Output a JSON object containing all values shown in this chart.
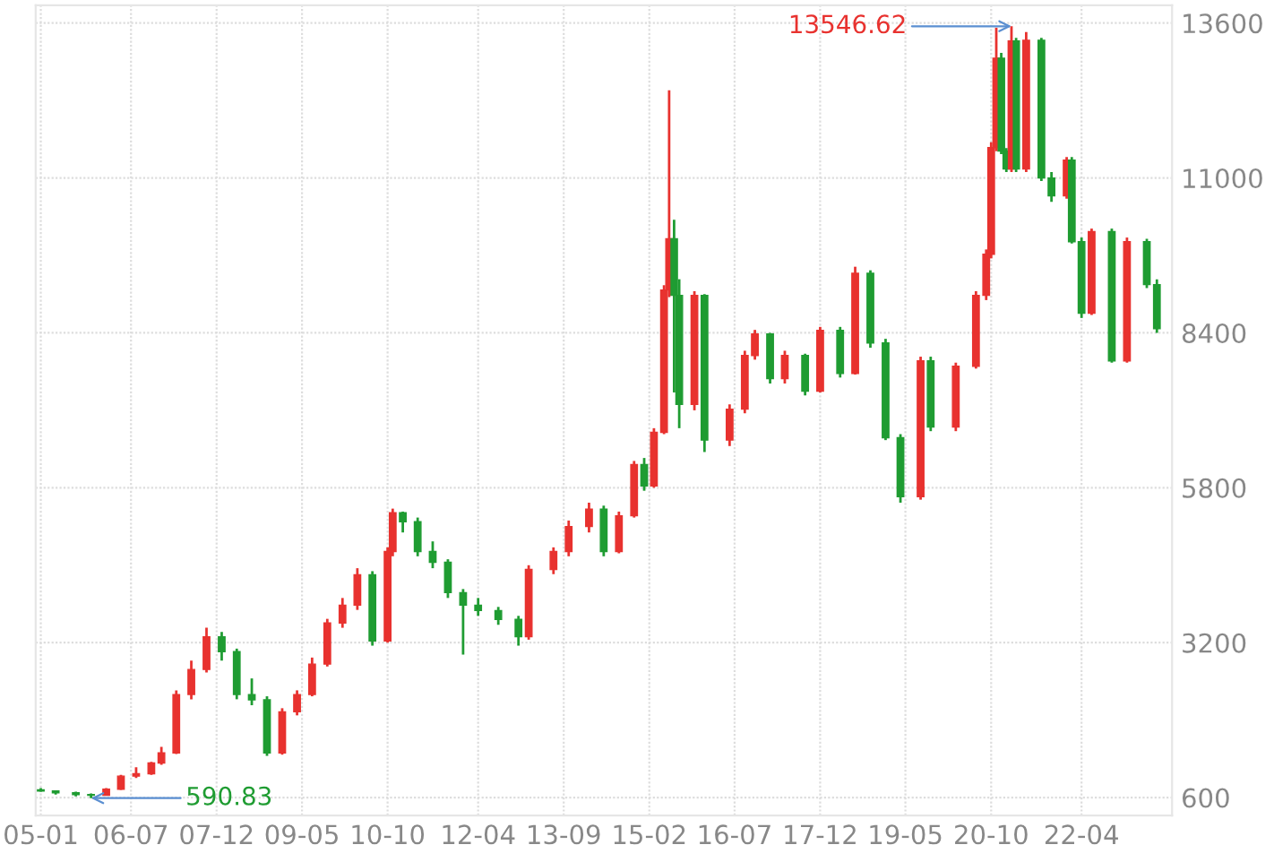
{
  "chart_data": {
    "type": "candlestick",
    "x": [
      "2005-01",
      "2005-04",
      "2005-08",
      "2005-11",
      "2006-02",
      "2006-05",
      "2006-08",
      "2006-11",
      "2007-01",
      "2007-04",
      "2007-07",
      "2007-10",
      "2008-01",
      "2008-04",
      "2008-07",
      "2008-10",
      "2009-01",
      "2009-04",
      "2009-07",
      "2009-10",
      "2010-01",
      "2010-04",
      "2010-07",
      "2010-10",
      "2010-11",
      "2011-01",
      "2011-04",
      "2011-07",
      "2011-10",
      "2012-01",
      "2012-04",
      "2012-08",
      "2012-12",
      "2013-02",
      "2013-07",
      "2013-10",
      "2014-02",
      "2014-05",
      "2014-08",
      "2014-11",
      "2015-01",
      "2015-03",
      "2015-05",
      "2015-06",
      "2015-07",
      "2015-08",
      "2015-11",
      "2016-01",
      "2016-06",
      "2016-09",
      "2016-11",
      "2017-02",
      "2017-05",
      "2017-09",
      "2017-12",
      "2018-04",
      "2018-07",
      "2018-10",
      "2019-01",
      "2019-04",
      "2019-08",
      "2019-10",
      "2020-03",
      "2020-07",
      "2020-09",
      "2020-10",
      "2020-11",
      "2020-12",
      "2021-01",
      "2021-02",
      "2021-03",
      "2021-05",
      "2021-08",
      "2021-10",
      "2022-01",
      "2022-02",
      "2022-04",
      "2022-06",
      "2022-10",
      "2023-01",
      "2023-05",
      "2023-07"
    ],
    "ohlc": [
      [
        730,
        760,
        700,
        710
      ],
      [
        710,
        720,
        650,
        680
      ],
      [
        680,
        700,
        620,
        650
      ],
      [
        650,
        670,
        590.83,
        640
      ],
      [
        640,
        760,
        630,
        740
      ],
      [
        740,
        980,
        730,
        960
      ],
      [
        960,
        1110,
        930,
        1000
      ],
      [
        1000,
        1200,
        980,
        1180
      ],
      [
        1180,
        1450,
        1150,
        1350
      ],
      [
        1350,
        2400,
        1330,
        2330
      ],
      [
        2330,
        2900,
        2250,
        2750
      ],
      [
        2750,
        3450,
        2700,
        3300
      ],
      [
        3300,
        3380,
        2900,
        3050
      ],
      [
        3050,
        3100,
        2250,
        2330
      ],
      [
        2330,
        2600,
        2150,
        2240
      ],
      [
        2240,
        2300,
        1300,
        1350
      ],
      [
        1350,
        2100,
        1320,
        2040
      ],
      [
        2040,
        2400,
        1980,
        2330
      ],
      [
        2330,
        2950,
        2300,
        2840
      ],
      [
        2840,
        3600,
        2800,
        3530
      ],
      [
        3530,
        3950,
        3450,
        3830
      ],
      [
        3830,
        4450,
        3750,
        4340
      ],
      [
        4340,
        4400,
        3150,
        3230
      ],
      [
        3230,
        4800,
        3200,
        4730
      ],
      [
        4730,
        5450,
        4650,
        5380
      ],
      [
        5380,
        5400,
        5050,
        5230
      ],
      [
        5230,
        5300,
        4650,
        4730
      ],
      [
        4730,
        4900,
        4450,
        4550
      ],
      [
        4550,
        4600,
        3950,
        4040
      ],
      [
        4040,
        4100,
        3000,
        3830
      ],
      [
        3830,
        3950,
        3650,
        3740
      ],
      [
        3740,
        3800,
        3500,
        3590
      ],
      [
        3590,
        3650,
        3150,
        3300
      ],
      [
        3300,
        4500,
        3250,
        4430
      ],
      [
        4430,
        4800,
        4350,
        4730
      ],
      [
        4730,
        5250,
        4650,
        5150
      ],
      [
        5150,
        5550,
        5050,
        5440
      ],
      [
        5440,
        5500,
        4650,
        4730
      ],
      [
        4730,
        5400,
        4700,
        5330
      ],
      [
        5330,
        6250,
        5300,
        6190
      ],
      [
        6190,
        6300,
        5750,
        5830
      ],
      [
        5830,
        6800,
        5800,
        6730
      ],
      [
        6730,
        9200,
        6700,
        9120
      ],
      [
        9120,
        12470,
        9000,
        9980
      ],
      [
        9980,
        10300,
        7400,
        9030
      ],
      [
        9030,
        9300,
        6800,
        7200
      ],
      [
        7200,
        9100,
        7100,
        9030
      ],
      [
        9030,
        9050,
        6400,
        6600
      ],
      [
        6600,
        7200,
        6500,
        7120
      ],
      [
        7120,
        8100,
        7050,
        8020
      ],
      [
        8020,
        8450,
        7950,
        8380
      ],
      [
        8380,
        8400,
        7550,
        7630
      ],
      [
        7630,
        8100,
        7550,
        8020
      ],
      [
        8020,
        8050,
        7350,
        7420
      ],
      [
        7420,
        8500,
        7400,
        8440
      ],
      [
        8440,
        8500,
        7650,
        7720
      ],
      [
        7720,
        9510,
        7700,
        9400
      ],
      [
        9400,
        9450,
        8150,
        8230
      ],
      [
        8230,
        8300,
        6600,
        6640
      ],
      [
        6640,
        6700,
        5550,
        5650
      ],
      [
        5650,
        8000,
        5600,
        7930
      ],
      [
        7930,
        8000,
        6750,
        6820
      ],
      [
        6820,
        7900,
        6750,
        7840
      ],
      [
        7840,
        9100,
        7800,
        9030
      ],
      [
        9030,
        9800,
        8950,
        9720
      ],
      [
        9720,
        11600,
        9650,
        11510
      ],
      [
        11510,
        13520,
        11450,
        13010
      ],
      [
        13010,
        13100,
        11400,
        11450
      ],
      [
        11450,
        11500,
        11100,
        11150
      ],
      [
        11150,
        13546.62,
        11100,
        13300
      ],
      [
        13300,
        13350,
        11100,
        11150
      ],
      [
        11150,
        13450,
        11100,
        13310
      ],
      [
        13310,
        13350,
        10950,
        11000
      ],
      [
        11000,
        11100,
        10600,
        10700
      ],
      [
        10700,
        11350,
        10650,
        11300
      ],
      [
        11300,
        11350,
        9900,
        9930
      ],
      [
        9930,
        10000,
        8650,
        8730
      ],
      [
        8730,
        10150,
        8700,
        10100
      ],
      [
        10100,
        10150,
        7900,
        7930
      ],
      [
        7930,
        10000,
        7900,
        9930
      ],
      [
        9930,
        9980,
        9150,
        9210
      ],
      [
        9210,
        9300,
        8400,
        8470
      ]
    ],
    "xlim": [
      "2004-12",
      "2023-10"
    ],
    "xticks": [
      {
        "value": "2005-01",
        "label": "05-01"
      },
      {
        "value": "2006-07",
        "label": "06-07"
      },
      {
        "value": "2007-12",
        "label": "07-12"
      },
      {
        "value": "2009-05",
        "label": "09-05"
      },
      {
        "value": "2010-10",
        "label": "10-10"
      },
      {
        "value": "2012-04",
        "label": "12-04"
      },
      {
        "value": "2013-09",
        "label": "13-09"
      },
      {
        "value": "2015-02",
        "label": "15-02"
      },
      {
        "value": "2016-07",
        "label": "16-07"
      },
      {
        "value": "2017-12",
        "label": "17-12"
      },
      {
        "value": "2019-05",
        "label": "19-05"
      },
      {
        "value": "2020-10",
        "label": "20-10"
      },
      {
        "value": "2022-04",
        "label": "22-04"
      }
    ],
    "ylim": [
      300,
      13900
    ],
    "yticks": [
      600,
      3200,
      5800,
      8400,
      11000,
      13600
    ],
    "grid": true,
    "annotations": [
      {
        "text": "13546.62",
        "x": "2021-02",
        "y": 13546.62
      },
      {
        "text": "590.83",
        "x": "2005-11",
        "y": 590.83
      }
    ]
  }
}
